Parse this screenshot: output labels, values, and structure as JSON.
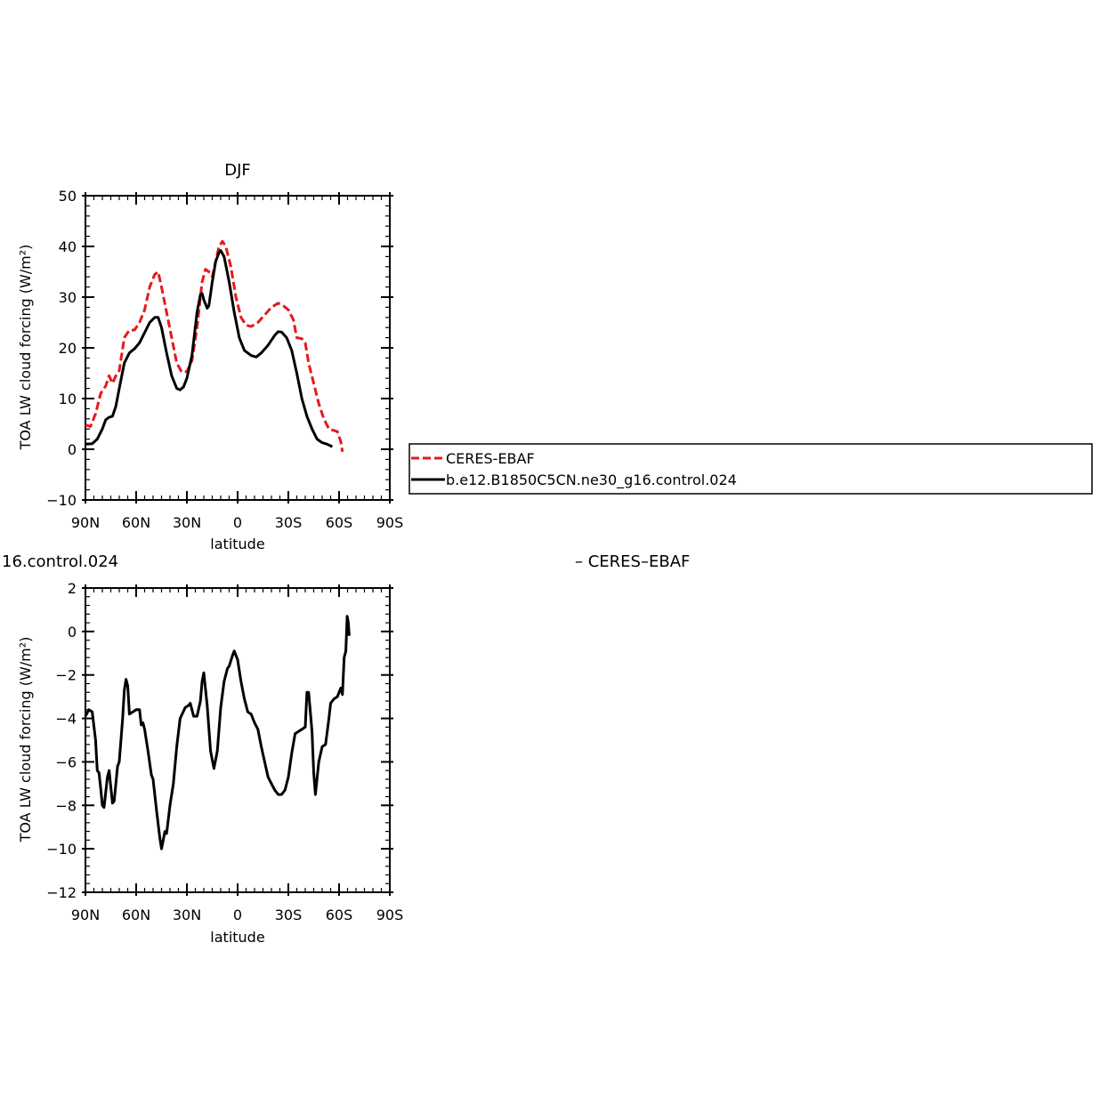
{
  "chart_data": [
    {
      "type": "line",
      "title": "DJF",
      "xlabel": "latitude",
      "ylabel": "TOA LW cloud forcing (W/m²)",
      "ylim": [
        -10,
        50
      ],
      "xlim": [
        90,
        -90
      ],
      "x_ticks": [
        {
          "value": 90,
          "label": "90N"
        },
        {
          "value": 60,
          "label": "60N"
        },
        {
          "value": 30,
          "label": "30N"
        },
        {
          "value": 0,
          "label": "0"
        },
        {
          "value": -30,
          "label": "30S"
        },
        {
          "value": -60,
          "label": "60S"
        },
        {
          "value": -90,
          "label": "90S"
        }
      ],
      "y_ticks": [
        -10,
        0,
        10,
        20,
        30,
        40,
        50
      ],
      "legend": "right",
      "series": [
        {
          "name": "CERES-EBAF",
          "color": "#e41a1c",
          "dash": true,
          "points": [
            [
              90,
              4.8
            ],
            [
              87,
              4.5
            ],
            [
              84,
              7
            ],
            [
              81,
              11
            ],
            [
              78,
              12.5
            ],
            [
              76,
              14.5
            ],
            [
              74,
              13
            ],
            [
              72,
              14.5
            ],
            [
              70,
              15.5
            ],
            [
              67,
              22
            ],
            [
              64,
              23.5
            ],
            [
              61,
              23.5
            ],
            [
              58,
              25
            ],
            [
              55,
              27.5
            ],
            [
              52,
              32
            ],
            [
              49,
              34.5
            ],
            [
              47,
              35
            ],
            [
              45,
              32
            ],
            [
              42,
              27
            ],
            [
              39,
              22
            ],
            [
              36,
              17
            ],
            [
              33,
              15.2
            ],
            [
              30,
              15.3
            ],
            [
              27,
              17.5
            ],
            [
              24,
              24
            ],
            [
              21,
              33
            ],
            [
              19,
              35.5
            ],
            [
              17,
              35
            ],
            [
              15,
              34
            ],
            [
              13,
              37
            ],
            [
              11,
              40
            ],
            [
              9,
              41
            ],
            [
              7,
              40
            ],
            [
              4,
              36
            ],
            [
              1,
              30
            ],
            [
              -2,
              26
            ],
            [
              -5,
              24.5
            ],
            [
              -8,
              24.2
            ],
            [
              -12,
              25
            ],
            [
              -16,
              26.5
            ],
            [
              -20,
              28
            ],
            [
              -24,
              28.8
            ],
            [
              -27,
              28.3
            ],
            [
              -30,
              27.5
            ],
            [
              -33,
              25.5
            ],
            [
              -35,
              22
            ],
            [
              -38,
              21.8
            ],
            [
              -40,
              21
            ],
            [
              -42,
              17
            ],
            [
              -45,
              13
            ],
            [
              -48,
              9
            ],
            [
              -51,
              6
            ],
            [
              -54,
              4
            ],
            [
              -57,
              3.7
            ],
            [
              -59,
              3.5
            ],
            [
              -61,
              1.5
            ],
            [
              -62,
              -0.5
            ]
          ]
        },
        {
          "name": "b.e12.B1850C5CN.ne30_g16.control.024",
          "color": "#000000",
          "dash": false,
          "points": [
            [
              90,
              1
            ],
            [
              86,
              1.1
            ],
            [
              83,
              2
            ],
            [
              80,
              4
            ],
            [
              78,
              5.8
            ],
            [
              76,
              6.3
            ],
            [
              74,
              6.5
            ],
            [
              72,
              8.5
            ],
            [
              70,
              12
            ],
            [
              67,
              17
            ],
            [
              64,
              19
            ],
            [
              61,
              19.8
            ],
            [
              58,
              21
            ],
            [
              55,
              23
            ],
            [
              52,
              25
            ],
            [
              49,
              26
            ],
            [
              47,
              26
            ],
            [
              45,
              24
            ],
            [
              42,
              19
            ],
            [
              39,
              14.5
            ],
            [
              36,
              12
            ],
            [
              34,
              11.7
            ],
            [
              32,
              12.3
            ],
            [
              30,
              14
            ],
            [
              27,
              18.5
            ],
            [
              24,
              27
            ],
            [
              22,
              30.5
            ],
            [
              21,
              30.7
            ],
            [
              20,
              29.5
            ],
            [
              18,
              27.8
            ],
            [
              17,
              28.3
            ],
            [
              15,
              33
            ],
            [
              13,
              37
            ],
            [
              11,
              38.8
            ],
            [
              10,
              39.2
            ],
            [
              8,
              38
            ],
            [
              5,
              33
            ],
            [
              2,
              27
            ],
            [
              -1,
              22
            ],
            [
              -4,
              19.5
            ],
            [
              -8,
              18.5
            ],
            [
              -11,
              18.2
            ],
            [
              -14,
              19
            ],
            [
              -18,
              20.5
            ],
            [
              -22,
              22.5
            ],
            [
              -24,
              23.2
            ],
            [
              -26,
              23.1
            ],
            [
              -29,
              22
            ],
            [
              -32,
              19.5
            ],
            [
              -35,
              15
            ],
            [
              -38,
              10
            ],
            [
              -41,
              6.5
            ],
            [
              -44,
              4
            ],
            [
              -47,
              2
            ],
            [
              -50,
              1.3
            ],
            [
              -53,
              1
            ],
            [
              -56,
              0.5
            ]
          ]
        }
      ]
    },
    {
      "type": "line",
      "title": "16.control.024",
      "title_right": "– CERES–EBAF",
      "xlabel": "latitude",
      "ylabel": "TOA LW cloud forcing (W/m²)",
      "ylim": [
        -12,
        2
      ],
      "xlim": [
        90,
        -90
      ],
      "x_ticks": [
        {
          "value": 90,
          "label": "90N"
        },
        {
          "value": 60,
          "label": "60N"
        },
        {
          "value": 30,
          "label": "30N"
        },
        {
          "value": 0,
          "label": "0"
        },
        {
          "value": -30,
          "label": "30S"
        },
        {
          "value": -60,
          "label": "60S"
        },
        {
          "value": -90,
          "label": "90S"
        }
      ],
      "y_ticks": [
        -12,
        -10,
        -8,
        -6,
        -4,
        -2,
        0,
        2
      ],
      "series": [
        {
          "color": "#000000",
          "dash": false,
          "points": [
            [
              90,
              -3.9
            ],
            [
              88,
              -3.6
            ],
            [
              86,
              -3.7
            ],
            [
              84,
              -5
            ],
            [
              83,
              -6.4
            ],
            [
              82,
              -6.5
            ],
            [
              81,
              -7.2
            ],
            [
              80,
              -8
            ],
            [
              79,
              -8.1
            ],
            [
              77,
              -6.7
            ],
            [
              76,
              -6.4
            ],
            [
              74,
              -7.9
            ],
            [
              73,
              -7.8
            ],
            [
              71,
              -6.2
            ],
            [
              70,
              -6
            ],
            [
              68,
              -4
            ],
            [
              67,
              -2.7
            ],
            [
              66,
              -2.2
            ],
            [
              65,
              -2.5
            ],
            [
              64,
              -3.8
            ],
            [
              62,
              -3.7
            ],
            [
              60,
              -3.6
            ],
            [
              58,
              -3.6
            ],
            [
              57,
              -4.3
            ],
            [
              56,
              -4.2
            ],
            [
              55,
              -4.5
            ],
            [
              53,
              -5.5
            ],
            [
              51,
              -6.6
            ],
            [
              50,
              -6.8
            ],
            [
              48,
              -8.2
            ],
            [
              46,
              -9.5
            ],
            [
              45,
              -10
            ],
            [
              43,
              -9.2
            ],
            [
              42,
              -9.3
            ],
            [
              40,
              -8
            ],
            [
              38,
              -7
            ],
            [
              36,
              -5.3
            ],
            [
              34,
              -4
            ],
            [
              31,
              -3.5
            ],
            [
              29,
              -3.4
            ],
            [
              28,
              -3.3
            ],
            [
              26,
              -3.9
            ],
            [
              24,
              -3.9
            ],
            [
              22,
              -3.2
            ],
            [
              21,
              -2.3
            ],
            [
              20,
              -1.9
            ],
            [
              18,
              -3.4
            ],
            [
              16,
              -5.5
            ],
            [
              14,
              -6.3
            ],
            [
              12,
              -5.5
            ],
            [
              10,
              -3.5
            ],
            [
              8,
              -2.3
            ],
            [
              6,
              -1.7
            ],
            [
              5,
              -1.6
            ],
            [
              3,
              -1.1
            ],
            [
              2,
              -0.9
            ],
            [
              0,
              -1.3
            ],
            [
              -2,
              -2.3
            ],
            [
              -4,
              -3.1
            ],
            [
              -6,
              -3.7
            ],
            [
              -8,
              -3.8
            ],
            [
              -10,
              -4.2
            ],
            [
              -12,
              -4.5
            ],
            [
              -14,
              -5.3
            ],
            [
              -16,
              -6
            ],
            [
              -18,
              -6.7
            ],
            [
              -20,
              -7
            ],
            [
              -22,
              -7.3
            ],
            [
              -24,
              -7.5
            ],
            [
              -26,
              -7.5
            ],
            [
              -28,
              -7.3
            ],
            [
              -30,
              -6.7
            ],
            [
              -32,
              -5.6
            ],
            [
              -34,
              -4.7
            ],
            [
              -36,
              -4.6
            ],
            [
              -38,
              -4.5
            ],
            [
              -40,
              -4.4
            ],
            [
              -41,
              -2.8
            ],
            [
              -42,
              -2.8
            ],
            [
              -44,
              -4.6
            ],
            [
              -45,
              -6.5
            ],
            [
              -46,
              -7.5
            ],
            [
              -48,
              -6
            ],
            [
              -50,
              -5.3
            ],
            [
              -52,
              -5.2
            ],
            [
              -54,
              -4
            ],
            [
              -55,
              -3.3
            ],
            [
              -57,
              -3.1
            ],
            [
              -59,
              -3
            ],
            [
              -61,
              -2.6
            ],
            [
              -62,
              -2.9
            ],
            [
              -63,
              -1.2
            ],
            [
              -64,
              -0.9
            ],
            [
              -64.8,
              0.7
            ],
            [
              -65.5,
              0.4
            ],
            [
              -66,
              -0.2
            ]
          ]
        }
      ]
    }
  ]
}
